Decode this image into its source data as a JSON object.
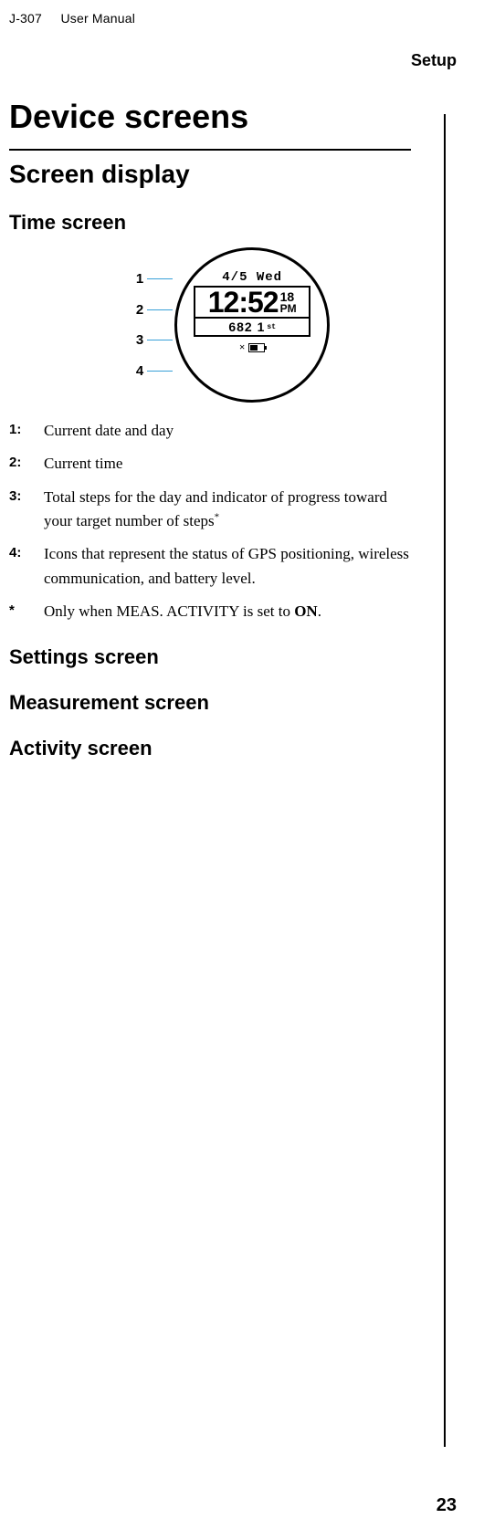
{
  "header": {
    "model": "J-307",
    "manual": "User Manual",
    "section": "Setup"
  },
  "h1": "Device screens",
  "h2_display": "Screen display",
  "h3_time": "Time screen",
  "watch": {
    "date": "4/5 Wed",
    "time": "12:52",
    "seconds": "18",
    "ampm": "PM",
    "steps": "682 1",
    "step_unit": "st"
  },
  "callout_numbers": [
    "1",
    "2",
    "3",
    "4"
  ],
  "defs": [
    {
      "k": "1:",
      "v": "Current date and day"
    },
    {
      "k": "2:",
      "v": "Current time"
    },
    {
      "k": "3:",
      "v": "Total steps for the day and indicator of progress toward your target number of steps",
      "sup": "*"
    },
    {
      "k": "4:",
      "v": "Icons that represent the status of GPS positioning, wireless communication, and battery level."
    },
    {
      "k": "*",
      "v": "Only when MEAS. ACTIVITY is set to ",
      "bold_after": "ON",
      "tail": "."
    }
  ],
  "h3_settings": "Settings screen",
  "h3_meas": "Measurement screen",
  "h3_activity": "Activity screen",
  "page_number": "23",
  "colors": {
    "leader": "#38a0d8",
    "text": "#000000",
    "bg": "#ffffff"
  }
}
